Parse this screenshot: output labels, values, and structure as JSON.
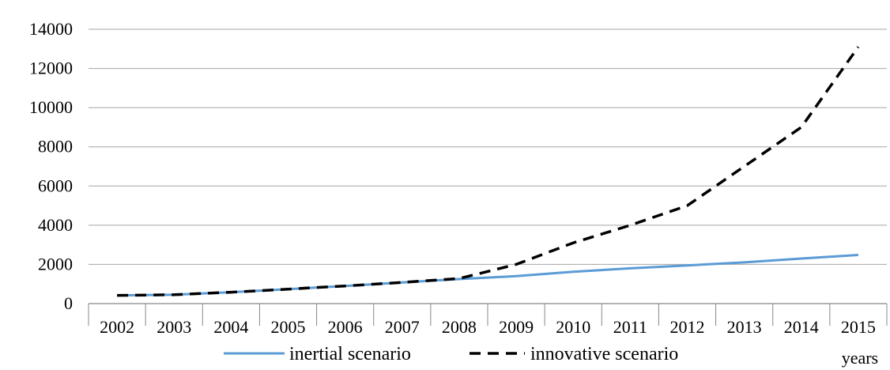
{
  "chart_data": {
    "type": "line",
    "title": "",
    "xlabel": "years",
    "ylabel": "",
    "x": [
      "2002",
      "2003",
      "2004",
      "2005",
      "2006",
      "2007",
      "2008",
      "2009",
      "2010",
      "2011",
      "2012",
      "2013",
      "2014",
      "2015"
    ],
    "ylim": [
      0,
      14000
    ],
    "yticks": [
      0,
      2000,
      4000,
      6000,
      8000,
      10000,
      12000,
      14000
    ],
    "grid": "horizontal",
    "legend": "bottom",
    "series": [
      {
        "name": "inertial scenario",
        "color": "#5b9bd5",
        "style": "solid",
        "values": [
          420,
          450,
          580,
          740,
          900,
          1080,
          1250,
          1400,
          1620,
          1800,
          1950,
          2100,
          2300,
          2480
        ]
      },
      {
        "name": "innovative scenario",
        "color": "#000000",
        "style": "dashed",
        "values": [
          420,
          450,
          580,
          740,
          900,
          1080,
          1280,
          2000,
          3100,
          4000,
          5000,
          7000,
          9000,
          13100
        ]
      }
    ]
  }
}
